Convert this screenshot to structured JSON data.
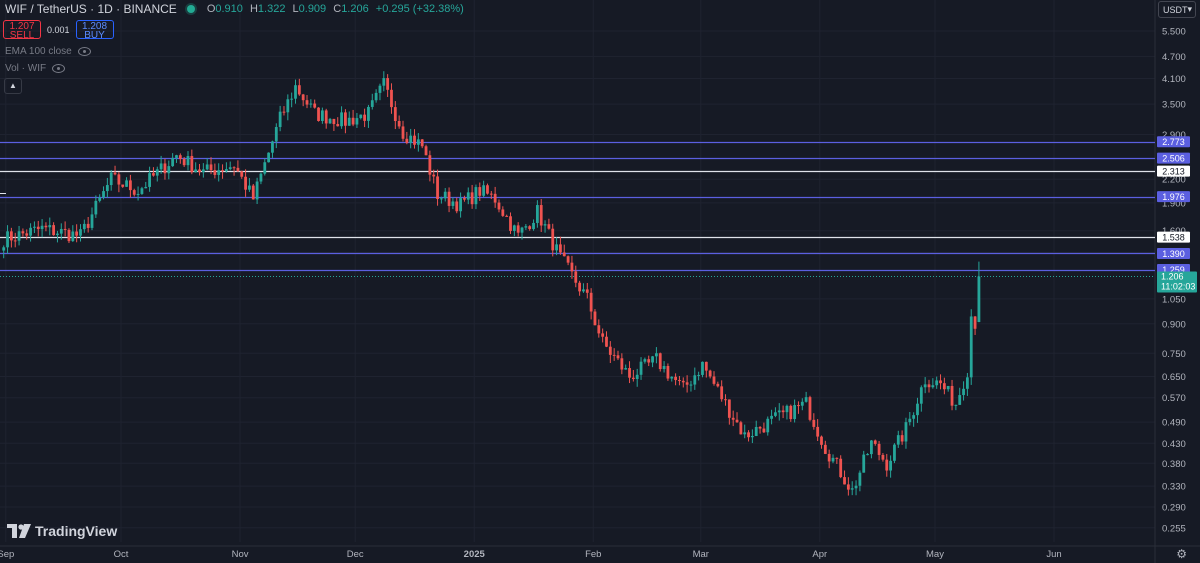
{
  "header": {
    "symbol": "WIF / TetherUS · 1D · BINANCE",
    "ohlc": [
      {
        "key": "O",
        "value": "0.910"
      },
      {
        "key": "H",
        "value": "1.322"
      },
      {
        "key": "L",
        "value": "0.909"
      },
      {
        "key": "C",
        "value": "1.206"
      }
    ],
    "change": "+0.295 (+32.38%)"
  },
  "trade": {
    "sell_price": "1.207",
    "sell_label": "SELL",
    "spread": "0.001",
    "buy_price": "1.208",
    "buy_label": "BUY"
  },
  "indicators": {
    "ema": "EMA 100 close",
    "vol": "Vol · WIF"
  },
  "currency": "USDT",
  "logo": "TradingView",
  "colors": {
    "up": "#26a69a",
    "down": "#ef5350",
    "line_blue": "#5b5fe0",
    "line_white": "#e0e3eb"
  },
  "chart_data": {
    "type": "candlestick",
    "yscale": "log",
    "y_ticks": [
      "5.500",
      "4.700",
      "4.100",
      "3.500",
      "2.900",
      "2.500",
      "2.200",
      "1.900",
      "1.600",
      "1.400",
      "1.050",
      "0.900",
      "0.750",
      "0.650",
      "0.570",
      "0.490",
      "0.430",
      "0.380",
      "0.330",
      "0.290",
      "0.255"
    ],
    "x_ticks": [
      "Sep",
      "Oct",
      "Nov",
      "Dec",
      "2025",
      "Feb",
      "Mar",
      "Apr",
      "May",
      "Jun"
    ],
    "horizontal_lines": [
      {
        "value": 2.773,
        "label": "2.773",
        "style": "blue"
      },
      {
        "value": 2.506,
        "label": "2.506",
        "style": "blue"
      },
      {
        "value": 2.313,
        "label": "2.313",
        "style": "white"
      },
      {
        "value": 1.976,
        "label": "1.976",
        "style": "blue"
      },
      {
        "value": 1.538,
        "label": "1.538",
        "style": "white"
      },
      {
        "value": 1.39,
        "label": "1.390",
        "style": "blue"
      },
      {
        "value": 1.259,
        "label": "1.259",
        "style": "blue"
      }
    ],
    "last_price": {
      "value": 1.206,
      "label": "1.206",
      "countdown": "11:02:03"
    },
    "path": [
      [
        "2024-08-31",
        1.52
      ],
      [
        "2024-09-10",
        1.62
      ],
      [
        "2024-09-20",
        1.55
      ],
      [
        "2024-09-28",
        2.2
      ],
      [
        "2024-10-05",
        2.05
      ],
      [
        "2024-10-15",
        2.55
      ],
      [
        "2024-10-22",
        2.3
      ],
      [
        "2024-10-30",
        2.4
      ],
      [
        "2024-11-04",
        1.95
      ],
      [
        "2024-11-11",
        3.2
      ],
      [
        "2024-11-15",
        3.9
      ],
      [
        "2024-11-20",
        3.3
      ],
      [
        "2024-11-28",
        3.15
      ],
      [
        "2024-12-04",
        3.3
      ],
      [
        "2024-12-08",
        3.95
      ],
      [
        "2024-12-13",
        2.95
      ],
      [
        "2024-12-18",
        2.7
      ],
      [
        "2024-12-22",
        2.0
      ],
      [
        "2024-12-28",
        1.88
      ],
      [
        "2025-01-02",
        2.05
      ],
      [
        "2025-01-06",
        1.95
      ],
      [
        "2025-01-12",
        1.55
      ],
      [
        "2025-01-17",
        1.8
      ],
      [
        "2025-01-23",
        1.35
      ],
      [
        "2025-01-30",
        1.05
      ],
      [
        "2025-02-03",
        0.8
      ],
      [
        "2025-02-10",
        0.65
      ],
      [
        "2025-02-17",
        0.72
      ],
      [
        "2025-02-24",
        0.6
      ],
      [
        "2025-03-01",
        0.7
      ],
      [
        "2025-03-07",
        0.55
      ],
      [
        "2025-03-12",
        0.45
      ],
      [
        "2025-03-20",
        0.5
      ],
      [
        "2025-03-28",
        0.55
      ],
      [
        "2025-04-02",
        0.42
      ],
      [
        "2025-04-06",
        0.36
      ],
      [
        "2025-04-09",
        0.32
      ],
      [
        "2025-04-14",
        0.43
      ],
      [
        "2025-04-18",
        0.38
      ],
      [
        "2025-04-23",
        0.47
      ],
      [
        "2025-04-28",
        0.64
      ],
      [
        "2025-05-02",
        0.62
      ],
      [
        "2025-05-06",
        0.55
      ],
      [
        "2025-05-09",
        0.68
      ],
      [
        "2025-05-10",
        0.95
      ],
      [
        "2025-05-11",
        0.91
      ],
      [
        "2025-05-12",
        1.206
      ]
    ]
  }
}
